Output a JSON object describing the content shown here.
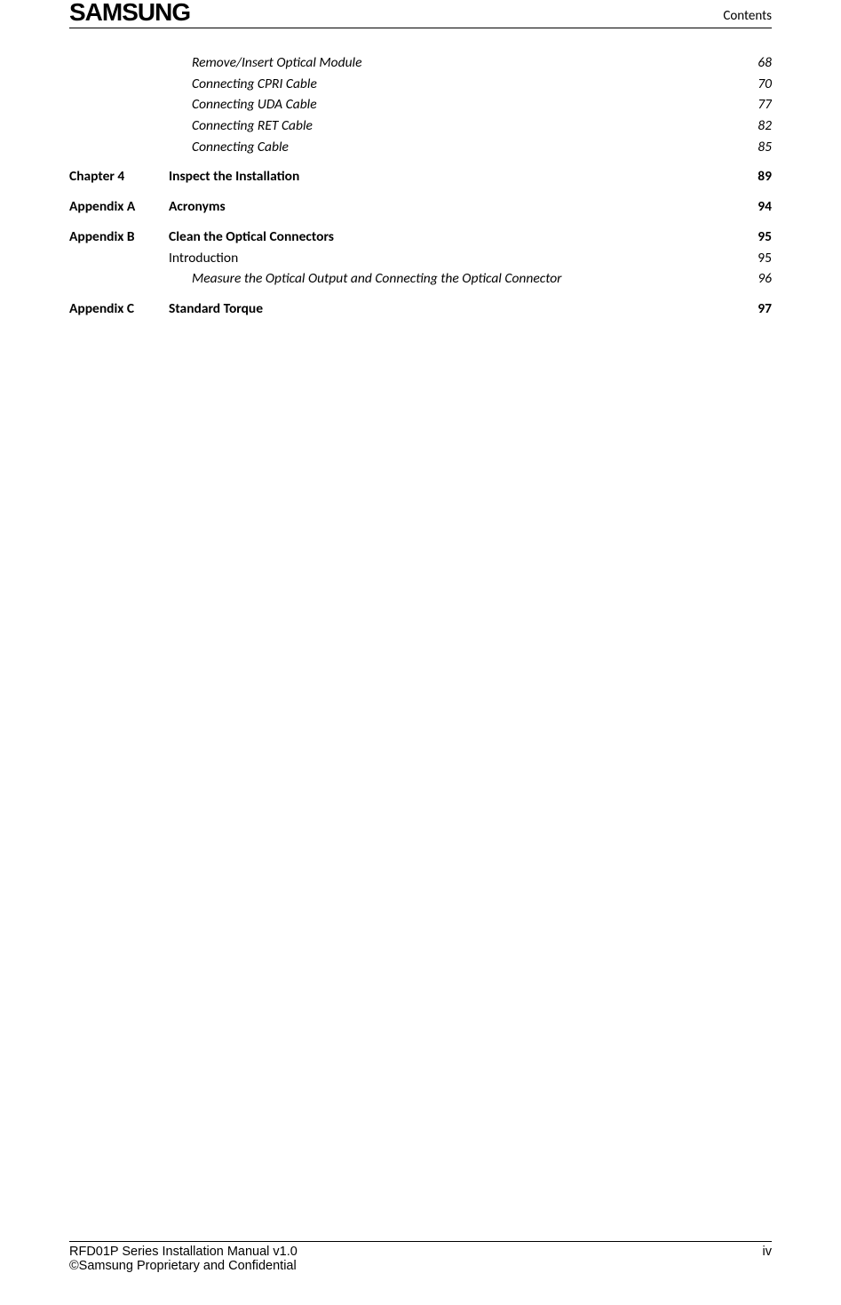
{
  "header": {
    "logo_text": "SAMSUNG",
    "right_text": "Contents"
  },
  "toc": [
    {
      "type": "sub-italic",
      "label": "",
      "title": "Remove/Insert Optical Module",
      "page": "68",
      "indent": 1
    },
    {
      "type": "sub-italic",
      "label": "",
      "title": "Connecting CPRI Cable",
      "page": "70",
      "indent": 1
    },
    {
      "type": "sub-italic",
      "label": "",
      "title": "Connecting UDA Cable",
      "page": "77",
      "indent": 1
    },
    {
      "type": "sub-italic",
      "label": "",
      "title": "Connecting RET Cable",
      "page": "82",
      "indent": 1
    },
    {
      "type": "sub-italic",
      "label": "",
      "title": "Connecting Cable",
      "page": "85",
      "indent": 1
    },
    {
      "type": "chapter",
      "label": "Chapter 4",
      "title": "Inspect the Installation",
      "page": "89",
      "gap": true
    },
    {
      "type": "chapter",
      "label": "Appendix A",
      "title": "Acronyms",
      "page": "94",
      "gap": true
    },
    {
      "type": "chapter",
      "label": "Appendix B",
      "title": "Clean the Optical Connectors",
      "page": "95",
      "gap": true
    },
    {
      "type": "sub",
      "label": "",
      "title": "Introduction",
      "page": "95",
      "indent": 0
    },
    {
      "type": "sub-italic",
      "label": "",
      "title": "Measure the Optical Output and Connecting the Optical Connector",
      "page": "96",
      "indent": 1
    },
    {
      "type": "chapter",
      "label": "Appendix C",
      "title": "Standard Torque",
      "page": "97",
      "gap": true
    }
  ],
  "footer": {
    "left1": "RFD01P Series Installation Manual   v1.0",
    "right1": "iv",
    "left2": "©Samsung Proprietary and Confidential"
  }
}
